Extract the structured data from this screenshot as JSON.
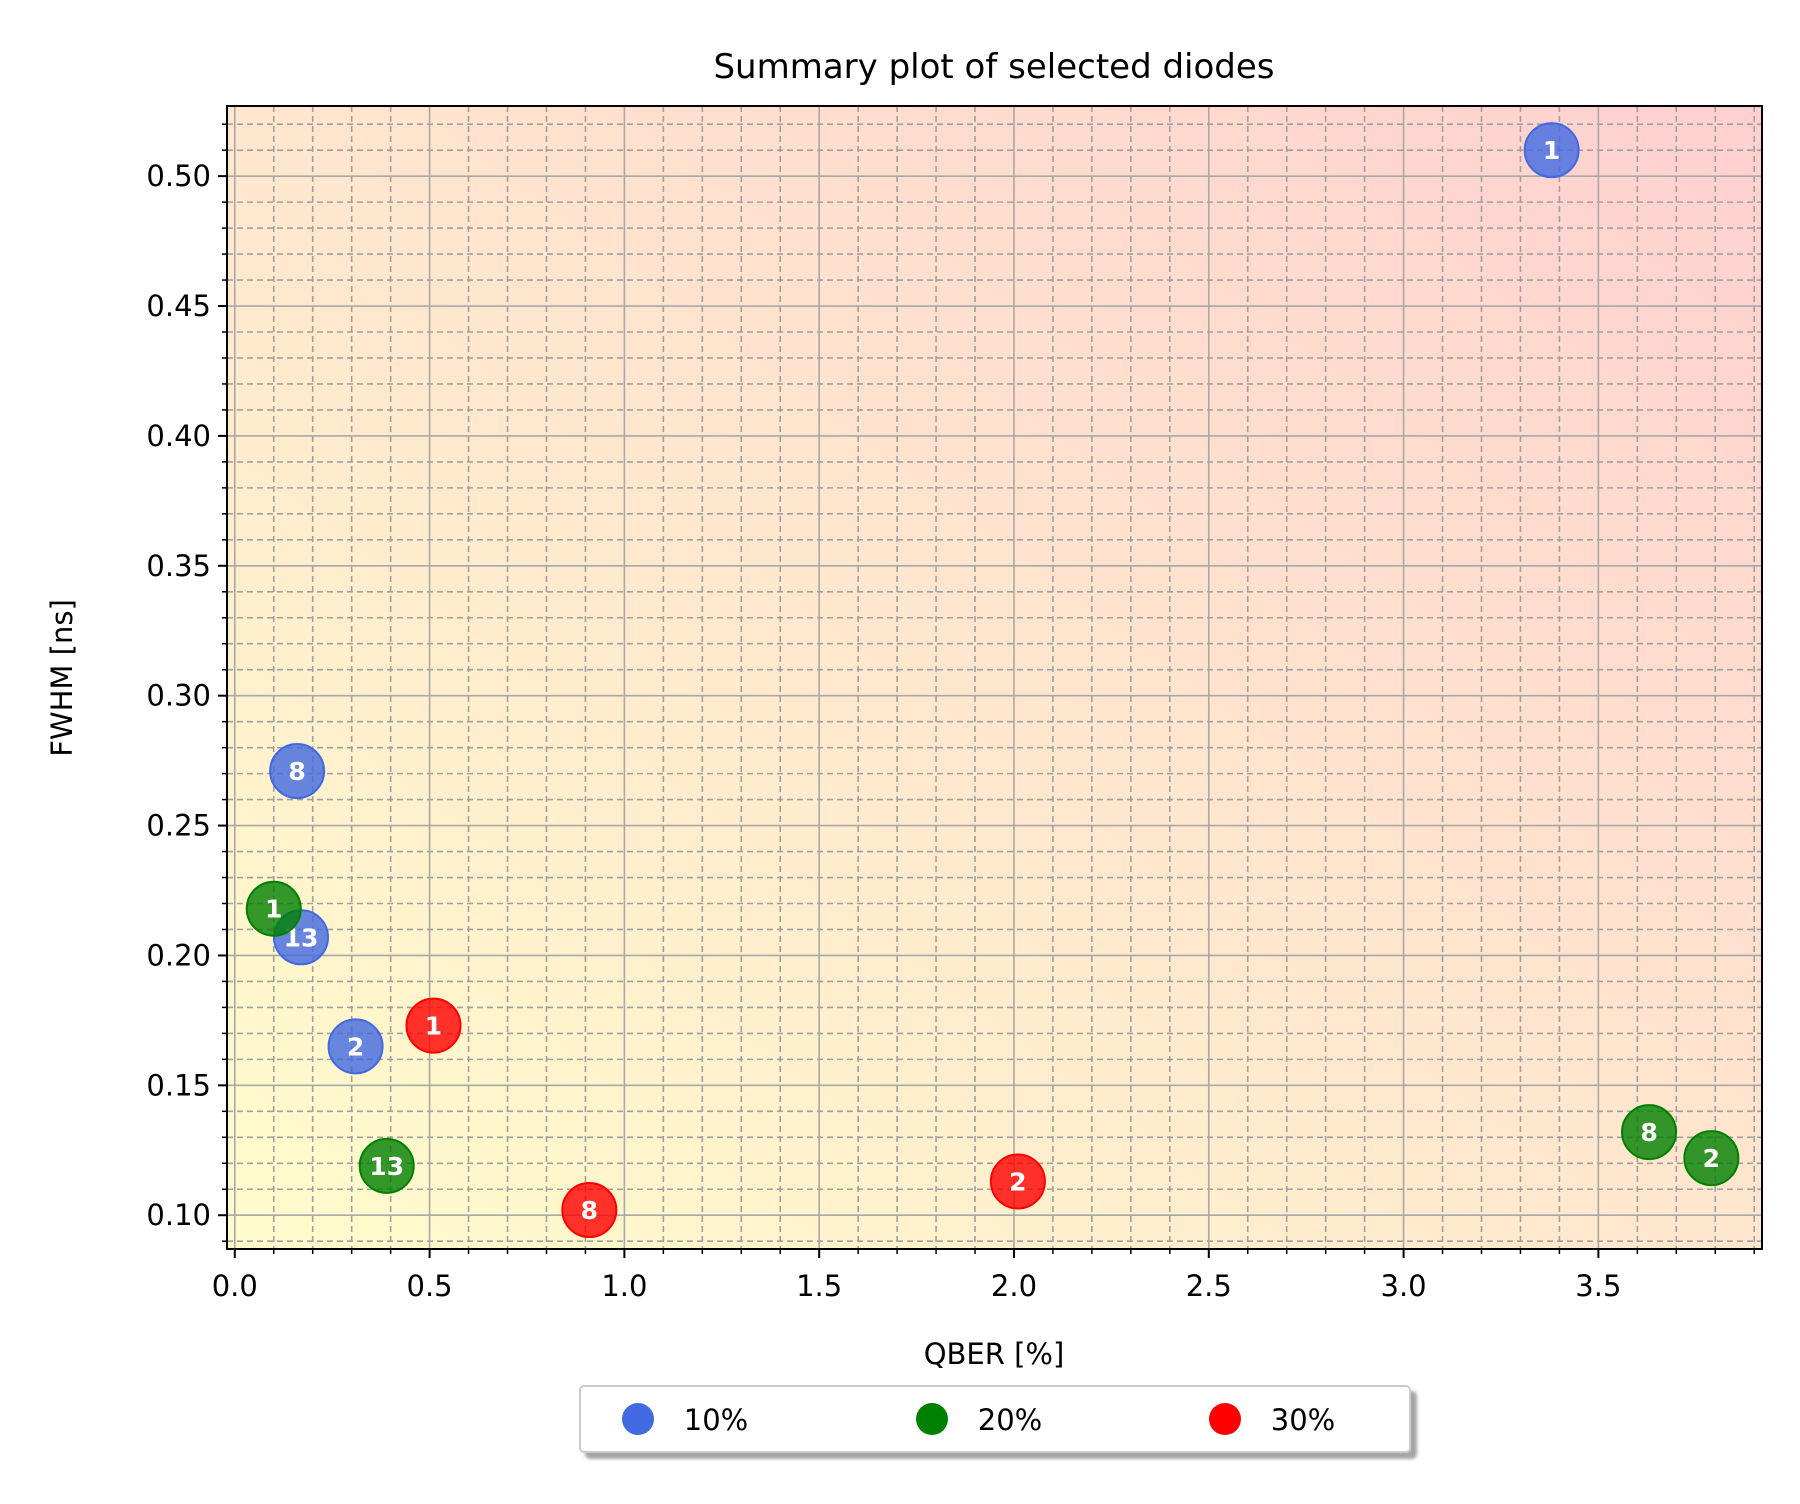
{
  "chart_data": {
    "type": "scatter",
    "title": "Summary plot of selected diodes",
    "xlabel": "QBER [%]",
    "ylabel": "FWHM [ns]",
    "xlim": [
      -0.02,
      3.92
    ],
    "ylim": [
      0.087,
      0.527
    ],
    "xticks": [
      0.0,
      0.5,
      1.0,
      1.5,
      2.0,
      2.5,
      3.0,
      3.5
    ],
    "xtick_labels": [
      "0.0",
      "0.5",
      "1.0",
      "1.5",
      "2.0",
      "2.5",
      "3.0",
      "3.5"
    ],
    "yticks": [
      0.1,
      0.15,
      0.2,
      0.25,
      0.3,
      0.35,
      0.4,
      0.45,
      0.5
    ],
    "ytick_labels": [
      "0.10",
      "0.15",
      "0.20",
      "0.25",
      "0.30",
      "0.35",
      "0.40",
      "0.45",
      "0.50"
    ],
    "grid": "major solid, minor dashed",
    "legend_position": "bottom-center, below the axes",
    "background_gradient": [
      "#fffccc",
      "#ffd0cf"
    ],
    "series": [
      {
        "name": "10%",
        "color": "#4169e1",
        "points": [
          {
            "x": 3.38,
            "y": 0.51,
            "label": "1"
          },
          {
            "x": 0.16,
            "y": 0.271,
            "label": "8"
          },
          {
            "x": 0.17,
            "y": 0.207,
            "label": "13"
          },
          {
            "x": 0.31,
            "y": 0.165,
            "label": "2"
          }
        ]
      },
      {
        "name": "20%",
        "color": "#008000",
        "points": [
          {
            "x": 0.1,
            "y": 0.218,
            "label": "1"
          },
          {
            "x": 0.39,
            "y": 0.119,
            "label": "13"
          },
          {
            "x": 3.63,
            "y": 0.132,
            "label": "8"
          },
          {
            "x": 3.79,
            "y": 0.122,
            "label": "2"
          }
        ]
      },
      {
        "name": "30%",
        "color": "#ff0000",
        "points": [
          {
            "x": 0.51,
            "y": 0.173,
            "label": "1"
          },
          {
            "x": 0.91,
            "y": 0.102,
            "label": "8"
          },
          {
            "x": 2.01,
            "y": 0.113,
            "label": "2"
          }
        ]
      }
    ]
  }
}
